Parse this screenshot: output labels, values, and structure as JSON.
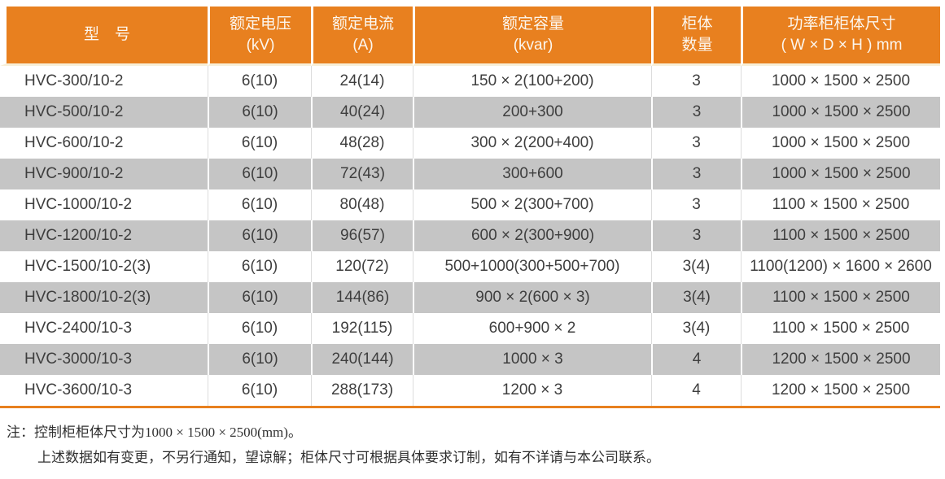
{
  "table": {
    "columns": [
      {
        "lines": [
          "型　号"
        ]
      },
      {
        "lines": [
          "额定电压",
          "(kV)"
        ]
      },
      {
        "lines": [
          "额定电流",
          "(A)"
        ]
      },
      {
        "lines": [
          "额定容量",
          "(kvar)"
        ]
      },
      {
        "lines": [
          "柜体",
          "数量"
        ]
      },
      {
        "lines": [
          "功率柜柜体尺寸",
          "( W × D × H ) mm"
        ]
      }
    ],
    "field_order": [
      "model",
      "rated_voltage_kv",
      "rated_current_a",
      "rated_capacity_kvar",
      "cabinet_count",
      "cabinet_size_mm"
    ],
    "rows": [
      {
        "model": "HVC-300/10-2",
        "rated_voltage_kv": "6(10)",
        "rated_current_a": "24(14)",
        "rated_capacity_kvar": "150 × 2(100+200)",
        "cabinet_count": "3",
        "cabinet_size_mm": "1000 × 1500 × 2500"
      },
      {
        "model": "HVC-500/10-2",
        "rated_voltage_kv": "6(10)",
        "rated_current_a": "40(24)",
        "rated_capacity_kvar": "200+300",
        "cabinet_count": "3",
        "cabinet_size_mm": "1000 × 1500 × 2500"
      },
      {
        "model": "HVC-600/10-2",
        "rated_voltage_kv": "6(10)",
        "rated_current_a": "48(28)",
        "rated_capacity_kvar": "300 × 2(200+400)",
        "cabinet_count": "3",
        "cabinet_size_mm": "1000 × 1500 × 2500"
      },
      {
        "model": "HVC-900/10-2",
        "rated_voltage_kv": "6(10)",
        "rated_current_a": "72(43)",
        "rated_capacity_kvar": "300+600",
        "cabinet_count": "3",
        "cabinet_size_mm": "1000 × 1500 × 2500"
      },
      {
        "model": "HVC-1000/10-2",
        "rated_voltage_kv": "6(10)",
        "rated_current_a": "80(48)",
        "rated_capacity_kvar": "500 × 2(300+700)",
        "cabinet_count": "3",
        "cabinet_size_mm": "1100 × 1500 × 2500"
      },
      {
        "model": "HVC-1200/10-2",
        "rated_voltage_kv": "6(10)",
        "rated_current_a": "96(57)",
        "rated_capacity_kvar": "600 × 2(300+900)",
        "cabinet_count": "3",
        "cabinet_size_mm": "1100 × 1500 × 2500"
      },
      {
        "model": "HVC-1500/10-2(3)",
        "rated_voltage_kv": "6(10)",
        "rated_current_a": "120(72)",
        "rated_capacity_kvar": "500+1000(300+500+700)",
        "cabinet_count": "3(4)",
        "cabinet_size_mm": "1100(1200) × 1600 × 2600"
      },
      {
        "model": "HVC-1800/10-2(3)",
        "rated_voltage_kv": "6(10)",
        "rated_current_a": "144(86)",
        "rated_capacity_kvar": "900 × 2(600 × 3)",
        "cabinet_count": "3(4)",
        "cabinet_size_mm": "1100 × 1500 × 2500"
      },
      {
        "model": "HVC-2400/10-3",
        "rated_voltage_kv": "6(10)",
        "rated_current_a": "192(115)",
        "rated_capacity_kvar": "600+900 × 2",
        "cabinet_count": "3(4)",
        "cabinet_size_mm": "1100 × 1500 × 2500"
      },
      {
        "model": "HVC-3000/10-3",
        "rated_voltage_kv": "6(10)",
        "rated_current_a": "240(144)",
        "rated_capacity_kvar": "1000 × 3",
        "cabinet_count": "4",
        "cabinet_size_mm": "1200 × 1500 × 2500"
      },
      {
        "model": "HVC-3600/10-3",
        "rated_voltage_kv": "6(10)",
        "rated_current_a": "288(173)",
        "rated_capacity_kvar": "1200 × 3",
        "cabinet_count": "4",
        "cabinet_size_mm": "1200 × 1500 × 2500"
      }
    ]
  },
  "notes": {
    "line1": "注：控制柜柜体尺寸为1000 × 1500 × 2500(mm)。",
    "line2": "上述数据如有变更，不另行通知，望谅解；柜体尺寸可根据具体要求订制，如有不详请与本公司联系。"
  },
  "colors": {
    "header_bg": "#E8801F",
    "header_text": "#FCF6EE",
    "stripe_bg": "#C5C5C5",
    "body_text": "#3E3E3E",
    "bottom_rule": "#E8801F"
  }
}
